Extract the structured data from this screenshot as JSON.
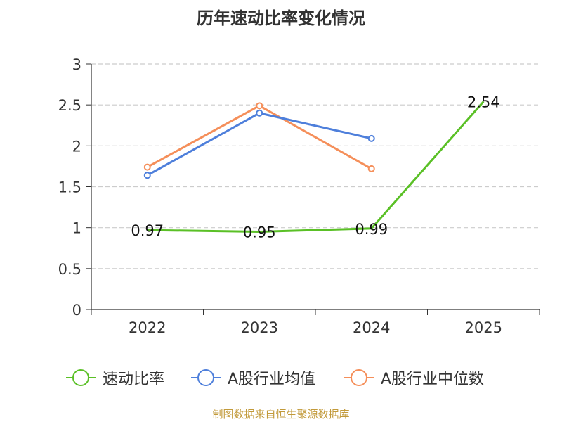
{
  "chart_data": {
    "type": "line",
    "title": "历年速动比率变化情况",
    "categories": [
      "2022",
      "2023",
      "2024",
      "2025"
    ],
    "ylim": [
      0,
      3
    ],
    "yticks": [
      "0",
      "0.5",
      "1",
      "1.5",
      "2",
      "2.5",
      "3"
    ],
    "grid": true,
    "legend_position": "bottom",
    "series": [
      {
        "name": "速动比率",
        "color": "#5ac026",
        "values": [
          0.97,
          0.95,
          0.99,
          2.54
        ],
        "labels": [
          "0.97",
          "0.95",
          "0.99",
          "2.54"
        ]
      },
      {
        "name": "A股行业均值",
        "color": "#4e7fdb",
        "values": [
          1.64,
          2.4,
          2.09,
          null
        ]
      },
      {
        "name": "A股行业中位数",
        "color": "#f58f5a",
        "values": [
          1.74,
          2.49,
          1.72,
          null
        ]
      }
    ]
  },
  "source": "制图数据来自恒生聚源数据库"
}
